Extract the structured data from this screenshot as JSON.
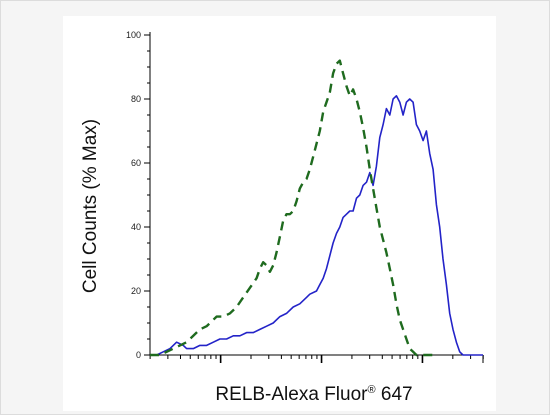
{
  "chart_data": {
    "type": "line",
    "title": "",
    "xlabel": "RELB-Alexa Fluor",
    "xlabel_mark": "®",
    "xlabel_suffix": " 647",
    "ylabel": "Cell Counts (% Max)",
    "xscale": "log",
    "xlim": [
      0,
      100
    ],
    "ylim": [
      0,
      100
    ],
    "y_ticks": [
      0,
      20,
      40,
      60,
      80,
      100
    ],
    "grid": false,
    "colors": {
      "blue": "#2323c8",
      "green": "#1f6b1f"
    },
    "series": [
      {
        "style": "solid",
        "color": "#2323c8",
        "points": [
          [
            0,
            0
          ],
          [
            2,
            0
          ],
          [
            4,
            1
          ],
          [
            6,
            2
          ],
          [
            8,
            4
          ],
          [
            10,
            3
          ],
          [
            11,
            2
          ],
          [
            13,
            2
          ],
          [
            15,
            3
          ],
          [
            17,
            3
          ],
          [
            19,
            4
          ],
          [
            21,
            5
          ],
          [
            23,
            5
          ],
          [
            25,
            6
          ],
          [
            27,
            6
          ],
          [
            29,
            7
          ],
          [
            31,
            7
          ],
          [
            33,
            8
          ],
          [
            35,
            9
          ],
          [
            37,
            10
          ],
          [
            39,
            12
          ],
          [
            41,
            13
          ],
          [
            43,
            15
          ],
          [
            45,
            16
          ],
          [
            47,
            18
          ],
          [
            48,
            19
          ],
          [
            50,
            20
          ],
          [
            51,
            22
          ],
          [
            52,
            24
          ],
          [
            53,
            27
          ],
          [
            54,
            31
          ],
          [
            55,
            35
          ],
          [
            56,
            38
          ],
          [
            57,
            40
          ],
          [
            58,
            43
          ],
          [
            59,
            44
          ],
          [
            60,
            45
          ],
          [
            61,
            45
          ],
          [
            62,
            49
          ],
          [
            63,
            50
          ],
          [
            64,
            53
          ],
          [
            65,
            54
          ],
          [
            66,
            57
          ],
          [
            67,
            53
          ],
          [
            68,
            59
          ],
          [
            69,
            68
          ],
          [
            70,
            72
          ],
          [
            71,
            77
          ],
          [
            72,
            75
          ],
          [
            73,
            80
          ],
          [
            74,
            81
          ],
          [
            75,
            79
          ],
          [
            76,
            75
          ],
          [
            77,
            79
          ],
          [
            78,
            80
          ],
          [
            79,
            79
          ],
          [
            80,
            72
          ],
          [
            81,
            70
          ],
          [
            82,
            67
          ],
          [
            83,
            70
          ],
          [
            84,
            63
          ],
          [
            85,
            58
          ],
          [
            86,
            47
          ],
          [
            87,
            40
          ],
          [
            88,
            30
          ],
          [
            89,
            22
          ],
          [
            90,
            13
          ],
          [
            91,
            8
          ],
          [
            92,
            4
          ],
          [
            93,
            1
          ],
          [
            94,
            0
          ],
          [
            96,
            0
          ],
          [
            100,
            0
          ]
        ]
      },
      {
        "style": "dashed",
        "color": "#1f6b1f",
        "points": [
          [
            0,
            0
          ],
          [
            3,
            0
          ],
          [
            5,
            1
          ],
          [
            7,
            2
          ],
          [
            9,
            3
          ],
          [
            11,
            4
          ],
          [
            13,
            6
          ],
          [
            15,
            8
          ],
          [
            17,
            9
          ],
          [
            19,
            11
          ],
          [
            20,
            12
          ],
          [
            22,
            12
          ],
          [
            24,
            13
          ],
          [
            26,
            15
          ],
          [
            28,
            18
          ],
          [
            30,
            21
          ],
          [
            32,
            24
          ],
          [
            33,
            27
          ],
          [
            34,
            29
          ],
          [
            35,
            28
          ],
          [
            36,
            26
          ],
          [
            37,
            28
          ],
          [
            38,
            32
          ],
          [
            39,
            37
          ],
          [
            40,
            42
          ],
          [
            41,
            44
          ],
          [
            42,
            44
          ],
          [
            43,
            45
          ],
          [
            44,
            48
          ],
          [
            45,
            52
          ],
          [
            46,
            54
          ],
          [
            47,
            55
          ],
          [
            48,
            58
          ],
          [
            49,
            62
          ],
          [
            50,
            66
          ],
          [
            51,
            70
          ],
          [
            52,
            76
          ],
          [
            53,
            79
          ],
          [
            54,
            82
          ],
          [
            55,
            88
          ],
          [
            56,
            91
          ],
          [
            57,
            92
          ],
          [
            58,
            88
          ],
          [
            59,
            84
          ],
          [
            60,
            81
          ],
          [
            61,
            83
          ],
          [
            62,
            80
          ],
          [
            63,
            76
          ],
          [
            64,
            71
          ],
          [
            65,
            65
          ],
          [
            66,
            58
          ],
          [
            67,
            52
          ],
          [
            68,
            46
          ],
          [
            69,
            40
          ],
          [
            70,
            36
          ],
          [
            71,
            32
          ],
          [
            72,
            27
          ],
          [
            73,
            22
          ],
          [
            74,
            16
          ],
          [
            75,
            11
          ],
          [
            76,
            8
          ],
          [
            77,
            5
          ],
          [
            78,
            2
          ],
          [
            79,
            1
          ],
          [
            80,
            0
          ],
          [
            82,
            0
          ],
          [
            85,
            0
          ]
        ]
      }
    ]
  }
}
